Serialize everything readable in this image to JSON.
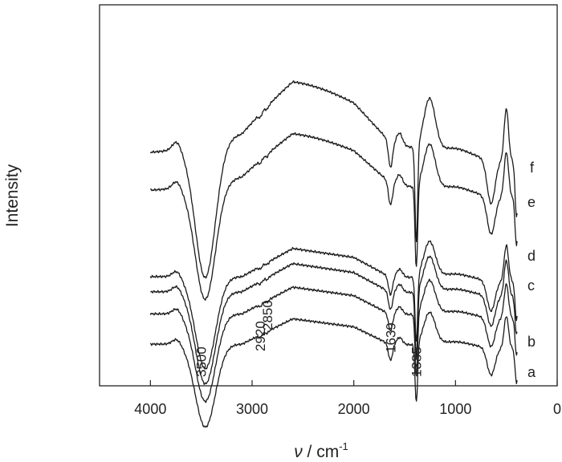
{
  "chart_data": {
    "type": "line",
    "title": "",
    "xlabel_var": "ν",
    "xlabel_unit": " / cm",
    "xlabel_sup": "-1",
    "ylabel": "Intensity",
    "xlim": [
      4500,
      0
    ],
    "xticks": [
      4000,
      3000,
      2000,
      1000,
      0
    ],
    "x_inverted": true,
    "grid": false,
    "legend": "none",
    "series": [
      {
        "name": "a",
        "offset": 0.0,
        "scale": 0.9,
        "extra": 0.0
      },
      {
        "name": "b",
        "offset": 0.115,
        "scale": 0.95,
        "extra": 0.0
      },
      {
        "name": "c",
        "offset": 0.195,
        "scale": 1.0,
        "extra": 0.0
      },
      {
        "name": "d",
        "offset": 0.26,
        "scale": 1.0,
        "extra": 0.0
      },
      {
        "name": "e",
        "offset": 0.55,
        "scale": 1.25,
        "extra": 0.18
      },
      {
        "name": "f",
        "offset": 0.65,
        "scale": 1.45,
        "extra": 0.25
      }
    ],
    "annotations": [
      {
        "label": "3500",
        "x": 3500
      },
      {
        "label": "2920",
        "x": 2920
      },
      {
        "label": "2850",
        "x": 2850
      },
      {
        "label": "1639",
        "x": 1639
      },
      {
        "label": "1385",
        "x": 1385
      }
    ]
  }
}
